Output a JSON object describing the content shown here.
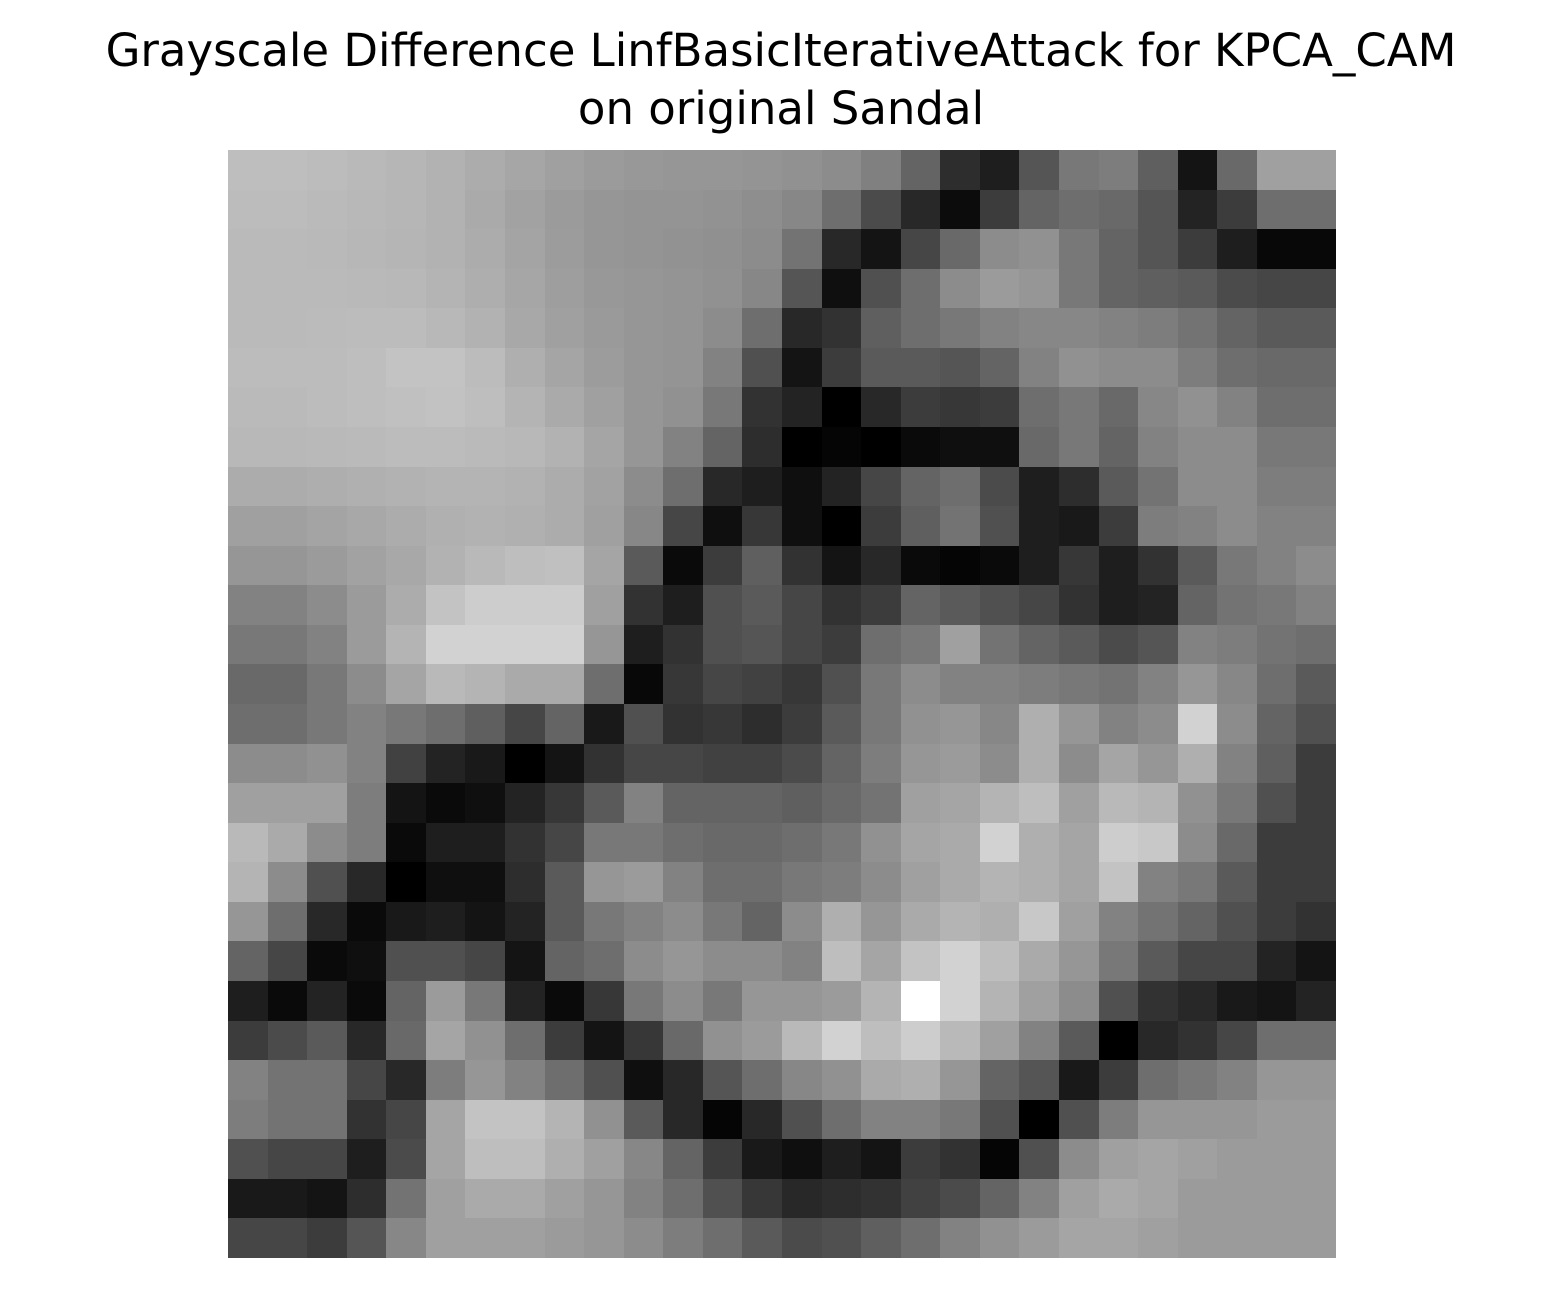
{
  "title": {
    "line1": "Grayscale Difference LinfBasicIterativeAttack for KPCA_CAM",
    "line2": "on original Sandal"
  },
  "chart_data": {
    "type": "heatmap",
    "title": "Grayscale Difference LinfBasicIterativeAttack for KPCA_CAM on original Sandal",
    "colormap": "gray",
    "axes_visible": false,
    "rows": 28,
    "cols": 28,
    "values": [
      [
        190,
        190,
        188,
        185,
        182,
        178,
        172,
        166,
        160,
        155,
        152,
        150,
        150,
        148,
        145,
        140,
        128,
        100,
        45,
        30,
        85,
        120,
        125,
        95,
        20,
        105,
        160,
        160
      ],
      [
        188,
        188,
        186,
        184,
        182,
        178,
        170,
        162,
        155,
        150,
        148,
        148,
        146,
        142,
        135,
        110,
        75,
        40,
        12,
        60,
        100,
        110,
        105,
        85,
        35,
        60,
        110,
        110
      ],
      [
        186,
        186,
        185,
        183,
        181,
        178,
        172,
        164,
        156,
        150,
        148,
        146,
        144,
        140,
        115,
        40,
        20,
        70,
        105,
        140,
        145,
        120,
        100,
        85,
        60,
        30,
        8,
        8
      ],
      [
        186,
        186,
        186,
        185,
        184,
        180,
        174,
        166,
        158,
        152,
        150,
        148,
        145,
        135,
        85,
        15,
        80,
        110,
        140,
        155,
        150,
        120,
        100,
        95,
        90,
        75,
        70,
        70
      ],
      [
        186,
        186,
        187,
        188,
        188,
        184,
        178,
        168,
        160,
        154,
        150,
        148,
        140,
        110,
        40,
        50,
        95,
        110,
        120,
        130,
        135,
        135,
        130,
        125,
        115,
        100,
        90,
        90
      ],
      [
        188,
        188,
        188,
        190,
        195,
        195,
        188,
        175,
        165,
        156,
        150,
        148,
        130,
        80,
        20,
        60,
        90,
        90,
        85,
        100,
        130,
        145,
        140,
        140,
        125,
        110,
        105,
        105
      ],
      [
        186,
        186,
        188,
        190,
        192,
        194,
        190,
        180,
        170,
        160,
        150,
        145,
        120,
        50,
        35,
        0,
        40,
        60,
        55,
        60,
        110,
        120,
        105,
        135,
        145,
        130,
        110,
        110
      ],
      [
        184,
        184,
        185,
        186,
        188,
        188,
        186,
        184,
        178,
        165,
        150,
        130,
        100,
        45,
        0,
        5,
        0,
        10,
        15,
        15,
        105,
        120,
        100,
        130,
        140,
        140,
        120,
        120
      ],
      [
        172,
        172,
        174,
        176,
        178,
        180,
        180,
        178,
        172,
        162,
        140,
        110,
        40,
        30,
        15,
        35,
        70,
        100,
        110,
        75,
        30,
        45,
        90,
        115,
        140,
        140,
        125,
        125
      ],
      [
        160,
        160,
        164,
        168,
        172,
        176,
        178,
        176,
        172,
        160,
        135,
        70,
        15,
        55,
        15,
        0,
        60,
        95,
        115,
        80,
        30,
        25,
        60,
        125,
        130,
        140,
        130,
        130
      ],
      [
        150,
        150,
        155,
        162,
        168,
        178,
        185,
        190,
        192,
        165,
        90,
        10,
        60,
        95,
        50,
        20,
        40,
        10,
        5,
        10,
        30,
        55,
        30,
        50,
        90,
        120,
        130,
        140
      ],
      [
        130,
        130,
        140,
        155,
        172,
        195,
        205,
        205,
        205,
        160,
        50,
        30,
        80,
        90,
        70,
        50,
        60,
        100,
        90,
        80,
        70,
        50,
        30,
        35,
        100,
        115,
        120,
        130
      ],
      [
        120,
        120,
        130,
        155,
        180,
        210,
        210,
        210,
        210,
        150,
        30,
        50,
        80,
        85,
        70,
        60,
        110,
        120,
        160,
        115,
        100,
        90,
        75,
        85,
        130,
        125,
        115,
        110
      ],
      [
        105,
        105,
        120,
        140,
        165,
        185,
        180,
        170,
        170,
        110,
        8,
        55,
        70,
        65,
        55,
        80,
        120,
        140,
        130,
        130,
        125,
        120,
        115,
        130,
        150,
        135,
        110,
        90
      ],
      [
        110,
        110,
        120,
        130,
        120,
        110,
        95,
        70,
        100,
        25,
        80,
        50,
        55,
        45,
        60,
        90,
        120,
        145,
        150,
        135,
        175,
        150,
        130,
        140,
        210,
        140,
        100,
        80
      ],
      [
        140,
        140,
        145,
        130,
        65,
        35,
        25,
        0,
        20,
        50,
        70,
        70,
        65,
        65,
        75,
        100,
        125,
        150,
        155,
        140,
        175,
        140,
        165,
        150,
        175,
        130,
        95,
        60
      ],
      [
        160,
        160,
        160,
        125,
        20,
        10,
        15,
        35,
        55,
        90,
        130,
        100,
        100,
        100,
        95,
        105,
        115,
        160,
        165,
        180,
        190,
        160,
        185,
        180,
        145,
        120,
        80,
        60
      ],
      [
        185,
        170,
        140,
        125,
        10,
        30,
        30,
        50,
        70,
        120,
        120,
        110,
        105,
        105,
        110,
        120,
        145,
        165,
        170,
        210,
        175,
        165,
        205,
        200,
        140,
        105,
        60,
        60
      ],
      [
        180,
        140,
        80,
        40,
        0,
        15,
        15,
        45,
        90,
        150,
        155,
        130,
        110,
        110,
        120,
        125,
        140,
        160,
        170,
        180,
        175,
        165,
        195,
        130,
        120,
        90,
        60,
        60
      ],
      [
        150,
        110,
        40,
        10,
        25,
        30,
        20,
        35,
        90,
        120,
        130,
        140,
        120,
        100,
        140,
        175,
        150,
        170,
        180,
        175,
        200,
        160,
        130,
        115,
        100,
        80,
        60,
        50
      ],
      [
        100,
        70,
        10,
        15,
        80,
        80,
        70,
        20,
        100,
        110,
        140,
        150,
        140,
        140,
        130,
        190,
        165,
        195,
        210,
        190,
        170,
        150,
        120,
        90,
        70,
        70,
        35,
        20
      ],
      [
        30,
        10,
        35,
        10,
        100,
        155,
        120,
        35,
        10,
        55,
        120,
        140,
        120,
        150,
        150,
        155,
        180,
        255,
        210,
        180,
        160,
        140,
        80,
        50,
        40,
        25,
        20,
        35
      ],
      [
        60,
        75,
        90,
        40,
        105,
        165,
        145,
        110,
        60,
        20,
        55,
        105,
        145,
        155,
        185,
        210,
        190,
        205,
        185,
        160,
        130,
        90,
        0,
        40,
        50,
        70,
        110,
        110
      ],
      [
        130,
        115,
        115,
        70,
        40,
        125,
        150,
        130,
        110,
        80,
        15,
        40,
        85,
        110,
        135,
        145,
        170,
        175,
        150,
        100,
        85,
        25,
        60,
        110,
        120,
        130,
        150,
        150
      ],
      [
        125,
        115,
        115,
        50,
        70,
        165,
        195,
        195,
        180,
        145,
        90,
        40,
        5,
        40,
        80,
        110,
        130,
        130,
        120,
        80,
        0,
        80,
        125,
        150,
        150,
        150,
        155,
        155
      ],
      [
        80,
        70,
        70,
        30,
        75,
        165,
        190,
        190,
        175,
        160,
        135,
        100,
        60,
        25,
        15,
        30,
        20,
        60,
        50,
        5,
        80,
        140,
        160,
        165,
        160,
        155,
        155,
        155
      ],
      [
        25,
        25,
        20,
        45,
        115,
        160,
        170,
        170,
        160,
        150,
        130,
        110,
        80,
        55,
        40,
        45,
        50,
        65,
        75,
        100,
        130,
        160,
        170,
        165,
        155,
        155,
        155,
        155
      ],
      [
        70,
        70,
        60,
        85,
        135,
        160,
        160,
        160,
        155,
        150,
        140,
        125,
        110,
        90,
        75,
        80,
        95,
        110,
        130,
        145,
        155,
        165,
        165,
        160,
        155,
        155,
        155,
        155
      ]
    ],
    "vmin": 0,
    "vmax": 255
  }
}
